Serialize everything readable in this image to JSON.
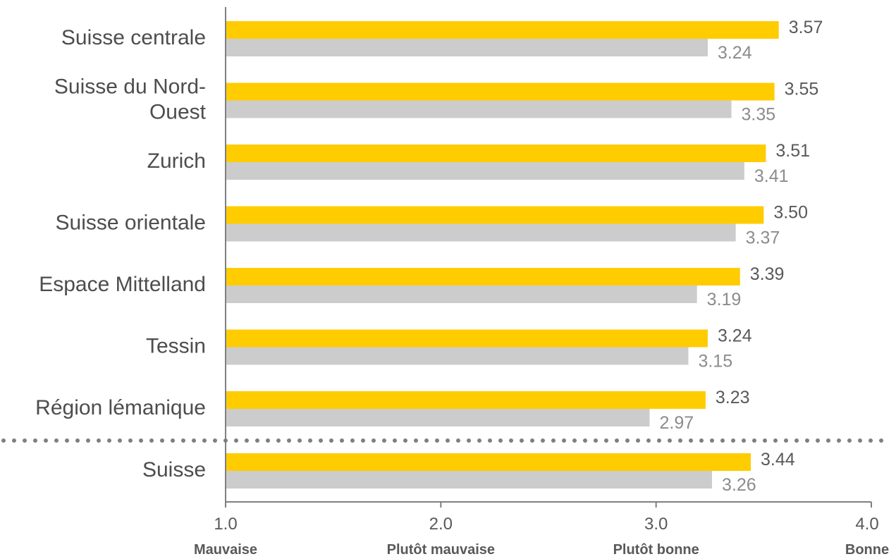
{
  "chart_data": {
    "type": "bar",
    "orientation": "horizontal",
    "categories": [
      [
        "Suisse centrale"
      ],
      [
        "Suisse du Nord-",
        "Ouest"
      ],
      [
        "Zurich"
      ],
      [
        "Suisse orientale"
      ],
      [
        "Espace Mittelland"
      ],
      [
        "Tessin"
      ],
      [
        "Région lémanique"
      ],
      [
        "Suisse"
      ]
    ],
    "series": [
      {
        "color": "#ffcc00",
        "values": [
          3.57,
          3.55,
          3.51,
          3.5,
          3.39,
          3.24,
          3.23,
          3.44
        ],
        "labels": [
          "3.57",
          "3.55",
          "3.51",
          "3.50",
          "3.39",
          "3.24",
          "3.23",
          "3.44"
        ]
      },
      {
        "color": "#cccccc",
        "values": [
          3.24,
          3.35,
          3.41,
          3.37,
          3.19,
          3.15,
          2.97,
          3.26
        ],
        "labels": [
          "3.24",
          "3.35",
          "3.41",
          "3.37",
          "3.19",
          "3.15",
          "2.97",
          "3.26"
        ]
      }
    ],
    "xlim": [
      1.0,
      4.0
    ],
    "ticks": [
      {
        "value": 1.0,
        "label": "1.0",
        "sublabel": "Mauvaise"
      },
      {
        "value": 2.0,
        "label": "2.0",
        "sublabel": "Plutôt mauvaise"
      },
      {
        "value": 3.0,
        "label": "3.0",
        "sublabel": "Plutôt bonne"
      },
      {
        "value": 4.0,
        "label": "4.0",
        "sublabel": "Bonne"
      }
    ],
    "separator_before_last": true,
    "grid": false,
    "legend": "none",
    "axis_color": "#7f7f7f",
    "separator_color": "#7f7f7f"
  }
}
